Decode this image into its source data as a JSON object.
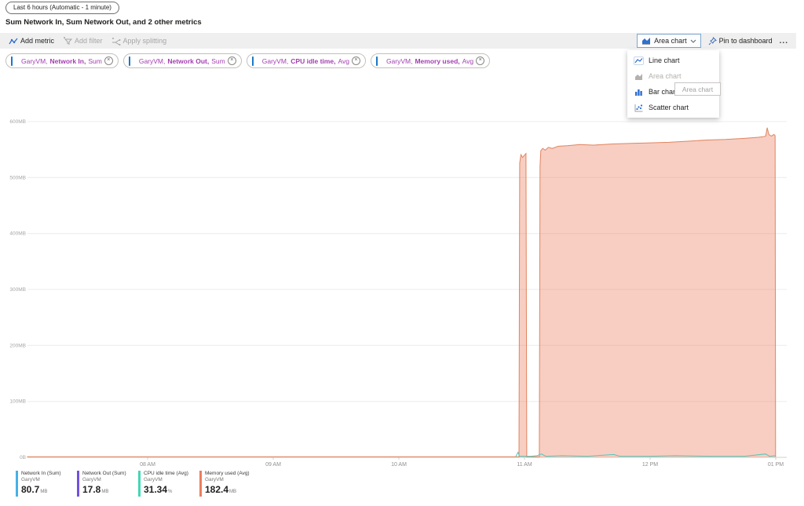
{
  "header": {
    "time_range": "Last 6 hours (Automatic - 1 minute)",
    "title": "Sum Network In, Sum Network Out, and 2 other metrics"
  },
  "toolbar": {
    "add_metric": "Add metric",
    "add_filter": "Add filter",
    "apply_splitting": "Apply splitting",
    "chart_type": "Area chart",
    "pin": "Pin to dashboard",
    "more": "..."
  },
  "icons": {
    "close": "×"
  },
  "metric_pills": [
    {
      "resource": "GaryVM,",
      "metric": "Network In,",
      "agg": "Sum"
    },
    {
      "resource": "GaryVM,",
      "metric": "Network Out,",
      "agg": "Sum"
    },
    {
      "resource": "GaryVM,",
      "metric": "CPU idle time,",
      "agg": "Avg"
    },
    {
      "resource": "GaryVM,",
      "metric": "Memory used,",
      "agg": "Avg"
    }
  ],
  "chart_menu": {
    "items": [
      {
        "label": "Line chart",
        "disabled": false
      },
      {
        "label": "Area chart",
        "disabled": true
      },
      {
        "label": "Bar chart",
        "disabled": false
      },
      {
        "label": "Scatter chart",
        "disabled": false
      }
    ],
    "tooltip": "Area chart"
  },
  "legend": [
    {
      "name": "Network In (Sum)",
      "resource": "GaryVM",
      "value": "80.7",
      "unit": "MB",
      "color": "#47b0e8"
    },
    {
      "name": "Network Out (Sum)",
      "resource": "GaryVM",
      "value": "17.8",
      "unit": "MB",
      "color": "#7150e0"
    },
    {
      "name": "CPU idle time (Avg)",
      "resource": "GaryVM",
      "value": "31.34",
      "unit": "%",
      "color": "#44d7b6"
    },
    {
      "name": "Memory used (Avg)",
      "resource": "GaryVM",
      "value": "182.4",
      "unit": "MB",
      "color": "#ec7d5f"
    }
  ],
  "chart_data": {
    "type": "area",
    "title": "Sum Network In, Sum Network Out, and 2 other metrics",
    "ylim": [
      0,
      600
    ],
    "xlim_hours": [
      6.98,
      13.09
    ],
    "grid": true,
    "y_ticks": [
      {
        "label": "600MB",
        "value": 600
      },
      {
        "label": "500MB",
        "value": 500
      },
      {
        "label": "400MB",
        "value": 400
      },
      {
        "label": "300MB",
        "value": 300
      },
      {
        "label": "200MB",
        "value": 200
      },
      {
        "label": "100MB",
        "value": 100
      },
      {
        "label": "0B",
        "value": 0
      }
    ],
    "x_ticks": [
      {
        "label": "08 AM",
        "hour": 8
      },
      {
        "label": "09 AM",
        "hour": 9
      },
      {
        "label": "10 AM",
        "hour": 10
      },
      {
        "label": "11 AM",
        "hour": 11
      },
      {
        "label": "12 PM",
        "hour": 12
      },
      {
        "label": "01 PM",
        "hour": 13
      }
    ],
    "series": [
      {
        "name": "Network In (Sum)",
        "unit": "MB",
        "color": "#47b0e8",
        "hidden": true,
        "points": [
          [
            7.04,
            0
          ],
          [
            13.0,
            0
          ]
        ]
      },
      {
        "name": "Network Out (Sum)",
        "unit": "MB",
        "color": "#7150e0",
        "hidden": true,
        "points": [
          [
            7.04,
            0
          ],
          [
            13.0,
            0
          ]
        ]
      },
      {
        "name": "Memory used (Avg)",
        "unit": "MB",
        "type": "area",
        "color": "#e0845f",
        "fill": "rgba(236,125,95,0.38)",
        "points": [
          [
            7.04,
            1
          ],
          [
            8.5,
            1
          ],
          [
            10.0,
            1
          ],
          [
            10.95,
            1
          ],
          [
            10.956,
            1
          ],
          [
            10.962,
            526
          ],
          [
            10.972,
            541
          ],
          [
            10.985,
            536
          ],
          [
            11.0,
            540
          ],
          [
            11.012,
            543
          ],
          [
            11.018,
            1
          ],
          [
            11.03,
            1
          ],
          [
            11.11,
            1
          ],
          [
            11.118,
            1
          ],
          [
            11.124,
            520
          ],
          [
            11.13,
            548
          ],
          [
            11.145,
            552
          ],
          [
            11.165,
            549
          ],
          [
            11.19,
            554
          ],
          [
            11.22,
            552
          ],
          [
            11.27,
            556
          ],
          [
            11.34,
            557
          ],
          [
            11.44,
            559
          ],
          [
            11.55,
            558
          ],
          [
            11.7,
            560
          ],
          [
            11.85,
            561
          ],
          [
            12.0,
            562
          ],
          [
            12.15,
            563
          ],
          [
            12.3,
            565
          ],
          [
            12.45,
            567
          ],
          [
            12.6,
            568
          ],
          [
            12.75,
            570
          ],
          [
            12.86,
            572
          ],
          [
            12.9,
            573
          ],
          [
            12.92,
            574
          ],
          [
            12.932,
            589
          ],
          [
            12.945,
            577
          ],
          [
            12.965,
            574
          ],
          [
            12.985,
            577
          ],
          [
            12.995,
            575
          ],
          [
            12.999,
            1
          ]
        ]
      },
      {
        "name": "CPU idle time (Avg)",
        "unit": "%",
        "type": "line",
        "color": "#52c7bd",
        "points": [
          [
            10.93,
            1
          ],
          [
            10.948,
            9
          ],
          [
            10.96,
            2
          ],
          [
            11.0,
            2
          ],
          [
            11.05,
            2
          ],
          [
            11.1,
            3
          ],
          [
            11.135,
            6
          ],
          [
            11.17,
            2
          ],
          [
            11.3,
            3
          ],
          [
            11.5,
            2
          ],
          [
            11.71,
            5
          ],
          [
            11.76,
            2
          ],
          [
            12.0,
            2
          ],
          [
            12.2,
            3
          ],
          [
            12.5,
            2
          ],
          [
            12.75,
            2
          ],
          [
            12.92,
            6
          ],
          [
            12.95,
            2
          ],
          [
            12.995,
            3
          ],
          [
            13.0,
            1
          ]
        ]
      }
    ]
  }
}
